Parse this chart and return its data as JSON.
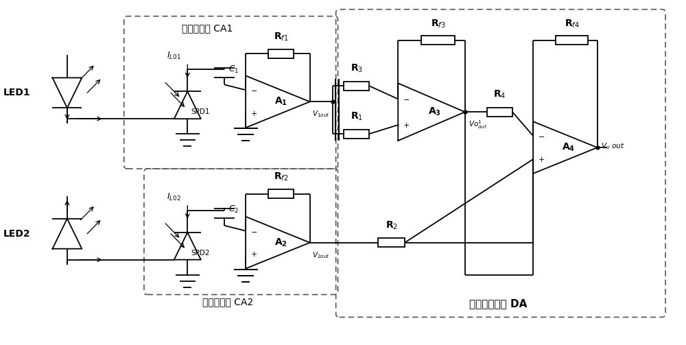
{
  "bg_color": "#ffffff",
  "line_color": "#000000",
  "fig_width": 10.0,
  "fig_height": 5.03,
  "ca1_label": "光电探测器 CA1",
  "ca2_label": "光电探测器 CA2",
  "da_label": "差分比较电路 DA"
}
